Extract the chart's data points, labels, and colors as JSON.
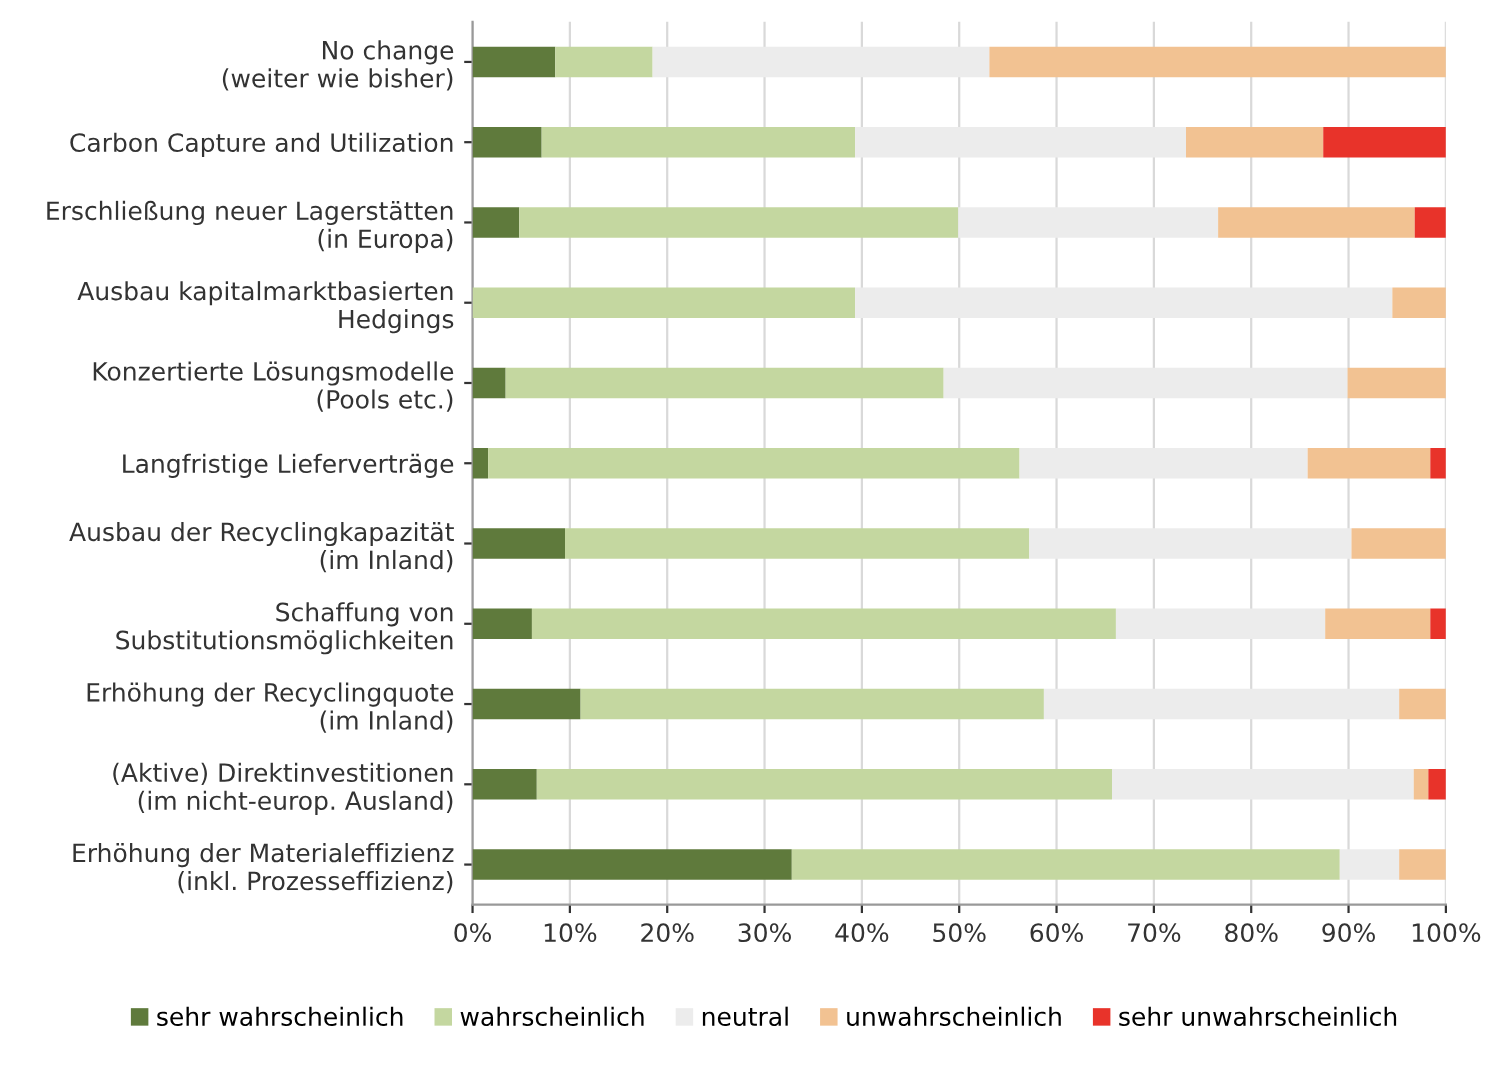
{
  "chart_data": {
    "type": "bar",
    "orientation": "horizontal",
    "stacked": true,
    "categories": [
      "No change\n(weiter wie bisher)",
      "Carbon Capture and Utilization",
      "Erschließung neuer Lagerstätten\n(in Europa)",
      "Ausbau kapitalmarktbasierten\nHedgings",
      "Konzertierte Lösungsmodelle\n(Pools etc.)",
      "Langfristige Lieferverträge",
      "Ausbau der Recyclingkapazität\n(im Inland)",
      "Schaffung von\nSubstitutionsmöglichkeiten",
      "Erhöhung der Recyclingquote\n(im Inland)",
      "(Aktive) Direktinvestitionen\n(im nicht-europ. Ausland)",
      "Erhöhung der Materialeffizienz\n(inkl. Prozesseffizienz)"
    ],
    "series": [
      {
        "name": "sehr wahrscheinlich",
        "color": "#5f7a3c",
        "values": [
          8.5,
          7.1,
          4.8,
          0,
          3.4,
          1.6,
          9.5,
          6.1,
          11.1,
          6.6,
          32.8
        ]
      },
      {
        "name": "wahrscheinlich",
        "color": "#c4d7a0",
        "values": [
          10,
          32.2,
          45.1,
          39.3,
          45,
          54.6,
          47.7,
          60,
          47.6,
          59.1,
          56.3
        ]
      },
      {
        "name": "neutral",
        "color": "#ececec",
        "values": [
          34.6,
          34,
          26.7,
          55.2,
          41.5,
          29.6,
          33.1,
          21.5,
          36.5,
          31,
          6.1
        ]
      },
      {
        "name": "unwahrscheinlich",
        "color": "#f2c292",
        "values": [
          46.9,
          14.1,
          20.2,
          5.5,
          10.1,
          12.6,
          9.7,
          10.8,
          4.8,
          1.5,
          4.8
        ]
      },
      {
        "name": "sehr unwahrscheinlich",
        "color": "#e8332a",
        "values": [
          0,
          12.6,
          3.2,
          0,
          0,
          1.6,
          0,
          1.6,
          0,
          1.8,
          0
        ]
      }
    ],
    "xlim": [
      0,
      100
    ],
    "xticks": [
      {
        "value": 0,
        "label": "0%"
      },
      {
        "value": 10,
        "label": "10%"
      },
      {
        "value": 20,
        "label": "20%"
      },
      {
        "value": 30,
        "label": "30%"
      },
      {
        "value": 40,
        "label": "40%"
      },
      {
        "value": 50,
        "label": "50%"
      },
      {
        "value": 60,
        "label": "60%"
      },
      {
        "value": 70,
        "label": "70%"
      },
      {
        "value": 80,
        "label": "80%"
      },
      {
        "value": 90,
        "label": "90%"
      },
      {
        "value": 100,
        "label": "100%"
      }
    ],
    "grid": "x",
    "legend": "bottom"
  }
}
